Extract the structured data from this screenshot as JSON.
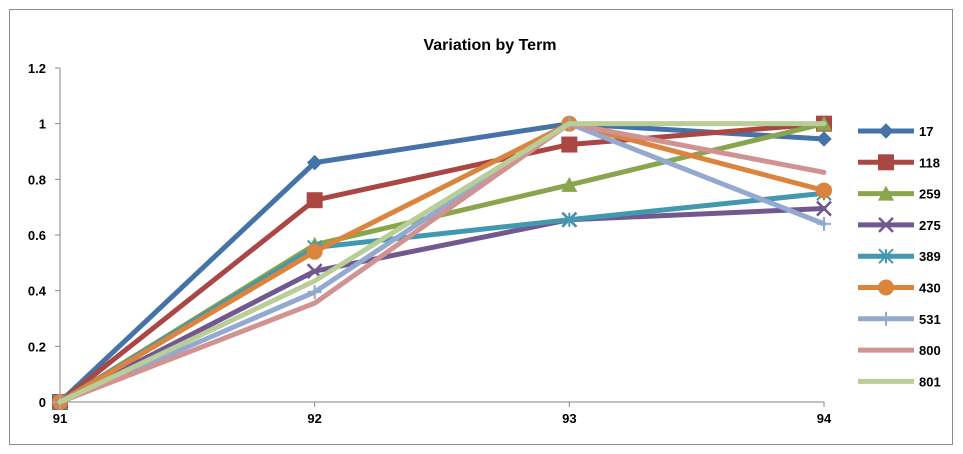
{
  "chart_data": {
    "type": "line",
    "title": "Variation by Term",
    "xlabel": "",
    "ylabel": "",
    "categories": [
      "91",
      "92",
      "93",
      "94"
    ],
    "ylim": [
      0,
      1.2
    ],
    "yticks": [
      "0",
      "0.2",
      "0.4",
      "0.6",
      "0.8",
      "1",
      "1.2"
    ],
    "grid": false,
    "legend_position": "right",
    "series": [
      {
        "name": "17",
        "values": [
          0,
          0.86,
          1.0,
          0.945
        ],
        "color": "#4572A7",
        "marker": "diamond"
      },
      {
        "name": "118",
        "values": [
          0,
          0.725,
          0.925,
          1.0
        ],
        "color": "#AA4643",
        "marker": "square"
      },
      {
        "name": "259",
        "values": [
          0,
          0.565,
          0.78,
          1.0
        ],
        "color": "#89A54E",
        "marker": "triangle"
      },
      {
        "name": "275",
        "values": [
          0,
          0.47,
          0.655,
          0.695
        ],
        "color": "#71588F",
        "marker": "x"
      },
      {
        "name": "389",
        "values": [
          0,
          0.555,
          0.655,
          0.75
        ],
        "color": "#4198AF",
        "marker": "star"
      },
      {
        "name": "430",
        "values": [
          0,
          0.54,
          1.0,
          0.76
        ],
        "color": "#DB843D",
        "marker": "circle"
      },
      {
        "name": "531",
        "values": [
          0,
          0.395,
          1.0,
          0.64
        ],
        "color": "#93A9CF",
        "marker": "plus"
      },
      {
        "name": "800",
        "values": [
          0,
          0.355,
          1.0,
          0.825
        ],
        "color": "#D19392",
        "marker": "none"
      },
      {
        "name": "801",
        "values": [
          0,
          0.435,
          1.0,
          1.0
        ],
        "color": "#B9CD96",
        "marker": "none"
      }
    ]
  }
}
